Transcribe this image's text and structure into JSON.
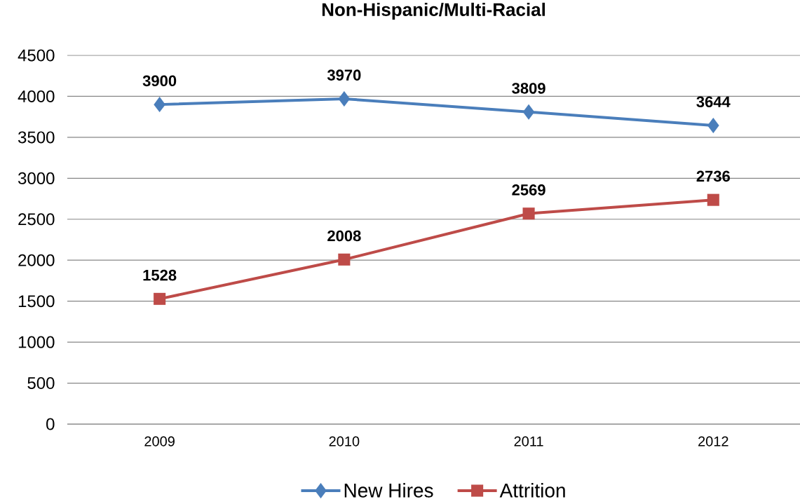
{
  "chart_data": {
    "type": "line",
    "title": "Non-Hispanic/Multi-Racial",
    "categories": [
      "2009",
      "2010",
      "2011",
      "2012"
    ],
    "series": [
      {
        "name": "New Hires",
        "color": "#4a7ebb",
        "values": [
          3900,
          3970,
          3809,
          3644
        ],
        "marker": "diamond"
      },
      {
        "name": "Attrition",
        "color": "#be4b48",
        "values": [
          1528,
          2008,
          2569,
          2736
        ],
        "marker": "square"
      }
    ],
    "ylim": [
      0,
      4500
    ],
    "yticks": [
      0,
      500,
      1000,
      1500,
      2000,
      2500,
      3000,
      3500,
      4000,
      4500
    ],
    "grid": "y",
    "legend": "bottom",
    "data_labels": true,
    "line_style": "solid"
  }
}
